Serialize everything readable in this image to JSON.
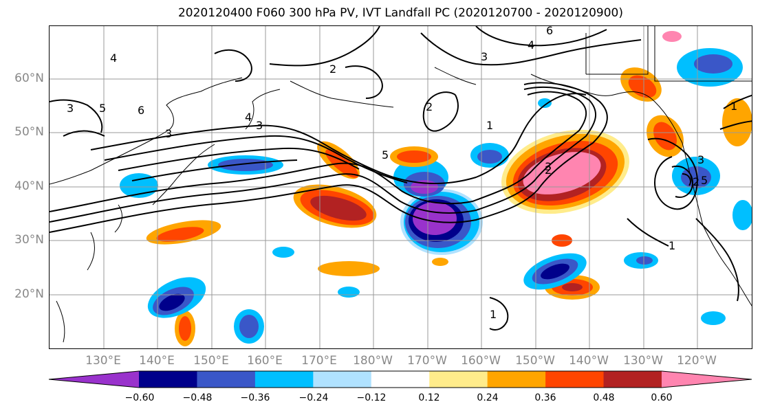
{
  "title": "2020120400 F060 300 hPa PV, IVT Landfall PC (2020120700 - 2020120900)",
  "map": {
    "lat_labels": [
      "60°N",
      "50°N",
      "40°N",
      "30°N",
      "20°N"
    ],
    "lon_labels": [
      "130°E",
      "140°E",
      "150°E",
      "160°E",
      "170°E",
      "180°W",
      "170°W",
      "160°W",
      "150°W",
      "140°W",
      "130°W",
      "120°W"
    ],
    "contour_labels": [
      "3",
      "5",
      "4",
      "6",
      "3",
      "4",
      "3",
      "2",
      "3",
      "4",
      "6",
      "2",
      "3",
      "5",
      "1",
      "2",
      "1",
      "1",
      "1",
      "2",
      "3",
      "5"
    ]
  },
  "colorbar": {
    "colors": [
      "#9932cc",
      "#00008b",
      "#3a57c8",
      "#00bfff",
      "#b0e2ff",
      "#ffffff",
      "#ffec8b",
      "#ffa500",
      "#ff4500",
      "#b22222",
      "#ff85b0"
    ],
    "tick_labels": [
      "−0.60",
      "−0.48",
      "−0.36",
      "−0.24",
      "−0.12",
      "0.12",
      "0.24",
      "0.36",
      "0.48",
      "0.60"
    ]
  }
}
